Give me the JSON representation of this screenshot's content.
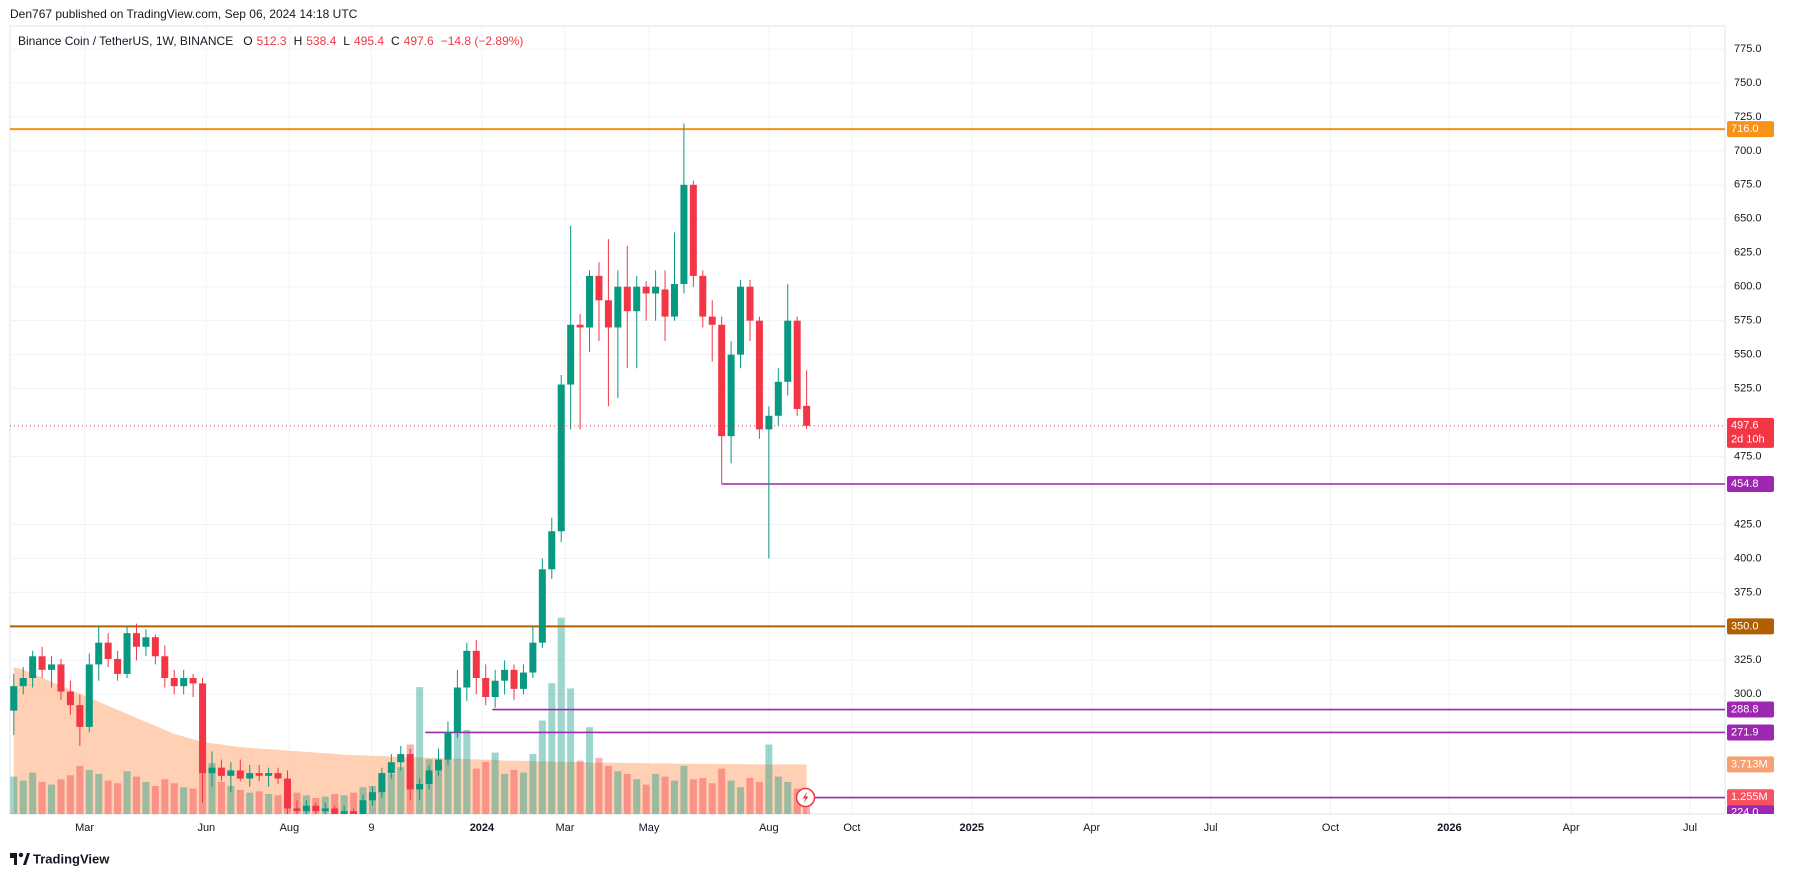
{
  "header": {
    "published": "Den767 published on TradingView.com, Sep 06, 2024 14:18 UTC",
    "symbol": "Binance Coin / TetherUS, 1W, BINANCE",
    "ohlc_keys": [
      "O",
      "H",
      "L",
      "C"
    ],
    "change": "−14.8 (−2.89%)",
    "countdown": "2d 10h",
    "brand": "TradingView"
  },
  "chart_data": {
    "type": "candlestick",
    "colors": {
      "up": "#089981",
      "down": "#f23645",
      "volume_ma": "#ffc8a6"
    },
    "grid": true,
    "open": [
      288,
      306,
      312,
      328,
      318,
      322,
      302,
      292,
      276,
      322,
      338,
      326,
      315,
      345,
      335,
      342,
      328,
      312,
      306,
      312,
      308,
      242,
      246,
      240,
      244,
      238,
      242,
      240,
      242,
      238,
      216,
      214,
      218,
      214,
      216,
      212,
      214,
      210,
      222,
      228,
      242,
      250,
      256,
      230,
      234,
      244,
      252,
      272,
      305,
      332,
      312,
      298,
      310,
      318,
      304,
      316,
      338,
      392,
      420,
      528,
      572,
      570,
      608,
      590,
      570,
      600,
      582,
      600,
      595,
      598,
      578,
      602,
      675,
      608,
      578,
      572,
      490,
      550,
      600,
      575,
      495,
      505,
      530,
      575,
      512.3
    ],
    "high": [
      315,
      320,
      332,
      335,
      328,
      326,
      310,
      300,
      330,
      350,
      345,
      332,
      350,
      352,
      348,
      344,
      336,
      318,
      318,
      315,
      312,
      258,
      252,
      250,
      252,
      248,
      248,
      246,
      246,
      244,
      222,
      222,
      220,
      220,
      218,
      218,
      216,
      226,
      232,
      246,
      256,
      262,
      260,
      238,
      248,
      260,
      280,
      318,
      338,
      340,
      322,
      318,
      325,
      322,
      322,
      350,
      400,
      430,
      535,
      645,
      580,
      612,
      618,
      635,
      612,
      630,
      608,
      604,
      612,
      612,
      640,
      720,
      678,
      612,
      590,
      578,
      560,
      605,
      605,
      578,
      512,
      540,
      602,
      578,
      538.4
    ],
    "low": [
      270,
      300,
      305,
      312,
      305,
      296,
      285,
      262,
      272,
      310,
      320,
      310,
      312,
      325,
      328,
      322,
      305,
      300,
      300,
      298,
      220,
      232,
      236,
      228,
      236,
      232,
      236,
      232,
      234,
      205,
      210,
      208,
      208,
      208,
      204,
      208,
      204,
      206,
      218,
      224,
      238,
      244,
      222,
      222,
      230,
      240,
      248,
      268,
      295,
      300,
      292,
      290,
      300,
      296,
      300,
      312,
      334,
      385,
      412,
      495,
      495,
      552,
      560,
      512,
      518,
      540,
      540,
      575,
      575,
      560,
      575,
      595,
      600,
      570,
      545,
      455,
      470,
      540,
      560,
      488,
      400,
      498,
      520,
      505,
      495.4
    ],
    "close": [
      306,
      312,
      328,
      318,
      322,
      302,
      292,
      276,
      322,
      338,
      326,
      315,
      345,
      335,
      342,
      328,
      312,
      306,
      312,
      308,
      242,
      246,
      240,
      244,
      238,
      242,
      240,
      242,
      238,
      216,
      214,
      218,
      214,
      216,
      212,
      214,
      210,
      222,
      228,
      242,
      250,
      256,
      230,
      234,
      244,
      252,
      272,
      305,
      332,
      312,
      298,
      310,
      318,
      304,
      316,
      338,
      392,
      420,
      528,
      572,
      570,
      608,
      590,
      570,
      600,
      582,
      600,
      595,
      600,
      578,
      602,
      675,
      608,
      578,
      572,
      490,
      550,
      600,
      575,
      495,
      505,
      530,
      575,
      510,
      497.6
    ],
    "volume": [
      2.8,
      2.5,
      3.1,
      2.4,
      2.2,
      2.6,
      2.9,
      3.6,
      3.3,
      3.0,
      2.5,
      2.3,
      3.2,
      2.8,
      2.4,
      2.1,
      2.6,
      2.3,
      2.0,
      1.9,
      5.5,
      3.8,
      2.4,
      2.1,
      1.8,
      1.6,
      1.7,
      1.5,
      1.4,
      2.6,
      1.6,
      1.4,
      1.2,
      1.3,
      1.5,
      1.4,
      1.6,
      2.0,
      2.1,
      2.6,
      3.0,
      3.5,
      5.2,
      9.5,
      4.1,
      3.8,
      5.6,
      7.2,
      6.3,
      3.4,
      3.9,
      4.6,
      3.0,
      3.3,
      3.1,
      4.5,
      7.0,
      9.8,
      14.7,
      9.4,
      4.0,
      6.5,
      4.2,
      3.6,
      3.2,
      3.0,
      2.6,
      2.2,
      3.0,
      2.8,
      2.5,
      3.6,
      2.6,
      2.7,
      2.3,
      3.4,
      2.5,
      2.0,
      2.7,
      2.4,
      5.2,
      2.8,
      2.4,
      1.9,
      1.255
    ],
    "volume_label": "1.255M",
    "volume_ma": [
      11.0,
      10.8,
      10.5,
      10.2,
      9.9,
      9.6,
      9.3,
      9.0,
      8.7,
      8.4,
      8.1,
      7.8,
      7.5,
      7.2,
      6.9,
      6.6,
      6.3,
      6.0,
      5.8,
      5.6,
      5.4,
      5.3,
      5.2,
      5.1,
      5.0,
      4.95,
      4.9,
      4.85,
      4.8,
      4.75,
      4.7,
      4.65,
      4.6,
      4.55,
      4.5,
      4.45,
      4.4,
      4.4,
      4.35,
      4.35,
      4.3,
      4.3,
      4.25,
      4.25,
      4.2,
      4.2,
      4.15,
      4.15,
      4.1,
      4.1,
      4.05,
      4.05,
      4.0,
      4.0,
      3.98,
      3.96,
      3.94,
      3.92,
      3.9,
      3.9,
      3.88,
      3.86,
      3.85,
      3.84,
      3.83,
      3.82,
      3.81,
      3.8,
      3.79,
      3.78,
      3.77,
      3.76,
      3.75,
      3.75,
      3.74,
      3.74,
      3.73,
      3.73,
      3.72,
      3.72,
      3.72,
      3.715,
      3.715,
      3.714,
      3.713
    ],
    "volume_ma_label": "3.713M",
    "vlim": [
      0,
      59
    ],
    "xlim": [
      -0.4,
      181.3
    ],
    "xticks": [
      {
        "value": 7.5,
        "label": "Mar"
      },
      {
        "value": 20.4,
        "label": "Jun"
      },
      {
        "value": 29.2,
        "label": "Aug"
      },
      {
        "value": 37.9,
        "label": "9"
      },
      {
        "value": 49.6,
        "label": "2024"
      },
      {
        "value": 58.4,
        "label": "Mar"
      },
      {
        "value": 67.3,
        "label": "May"
      },
      {
        "value": 80,
        "label": "Aug"
      },
      {
        "value": 88.8,
        "label": "Oct"
      },
      {
        "value": 101.5,
        "label": "2025"
      },
      {
        "value": 114.2,
        "label": "Apr"
      },
      {
        "value": 126.8,
        "label": "Jul"
      },
      {
        "value": 139.5,
        "label": "Oct"
      },
      {
        "value": 152.1,
        "label": "2026"
      },
      {
        "value": 165,
        "label": "Apr"
      },
      {
        "value": 177.6,
        "label": "Jul"
      }
    ],
    "ylim": [
      211.9,
      791.9
    ],
    "yticks": [
      {
        "value": 300,
        "label": "300.0"
      },
      {
        "value": 325,
        "label": "325.0"
      },
      {
        "value": 375,
        "label": "375.0"
      },
      {
        "value": 400,
        "label": "400.0"
      },
      {
        "value": 425,
        "label": "425.0"
      },
      {
        "value": 475,
        "label": "475.0"
      },
      {
        "value": 525,
        "label": "525.0"
      },
      {
        "value": 550,
        "label": "550.0"
      },
      {
        "value": 575,
        "label": "575.0"
      },
      {
        "value": 600,
        "label": "600.0"
      },
      {
        "value": 625,
        "label": "625.0"
      },
      {
        "value": 650,
        "label": "650.0"
      },
      {
        "value": 675,
        "label": "675.0"
      },
      {
        "value": 700,
        "label": "700.0"
      },
      {
        "value": 725,
        "label": "725.0"
      },
      {
        "value": 750,
        "label": "750.0"
      },
      {
        "value": 775,
        "label": "775.0"
      }
    ],
    "levels": [
      {
        "value": 716,
        "label": "716.0",
        "color": "#f7931a",
        "from": -0.4
      },
      {
        "value": 454.8,
        "label": "454.8",
        "color": "#9c27b0",
        "from": 75
      },
      {
        "value": 350,
        "label": "350.0",
        "color": "#b25f00",
        "from": -0.4
      },
      {
        "value": 288.8,
        "label": "288.8",
        "color": "#9c27b0",
        "from": 50.7
      },
      {
        "value": 271.9,
        "label": "271.9",
        "color": "#9c27b0",
        "from": 43.6
      },
      {
        "value": 224,
        "label": "224.0",
        "color": "#9c27b0",
        "from": 84.2
      }
    ]
  }
}
